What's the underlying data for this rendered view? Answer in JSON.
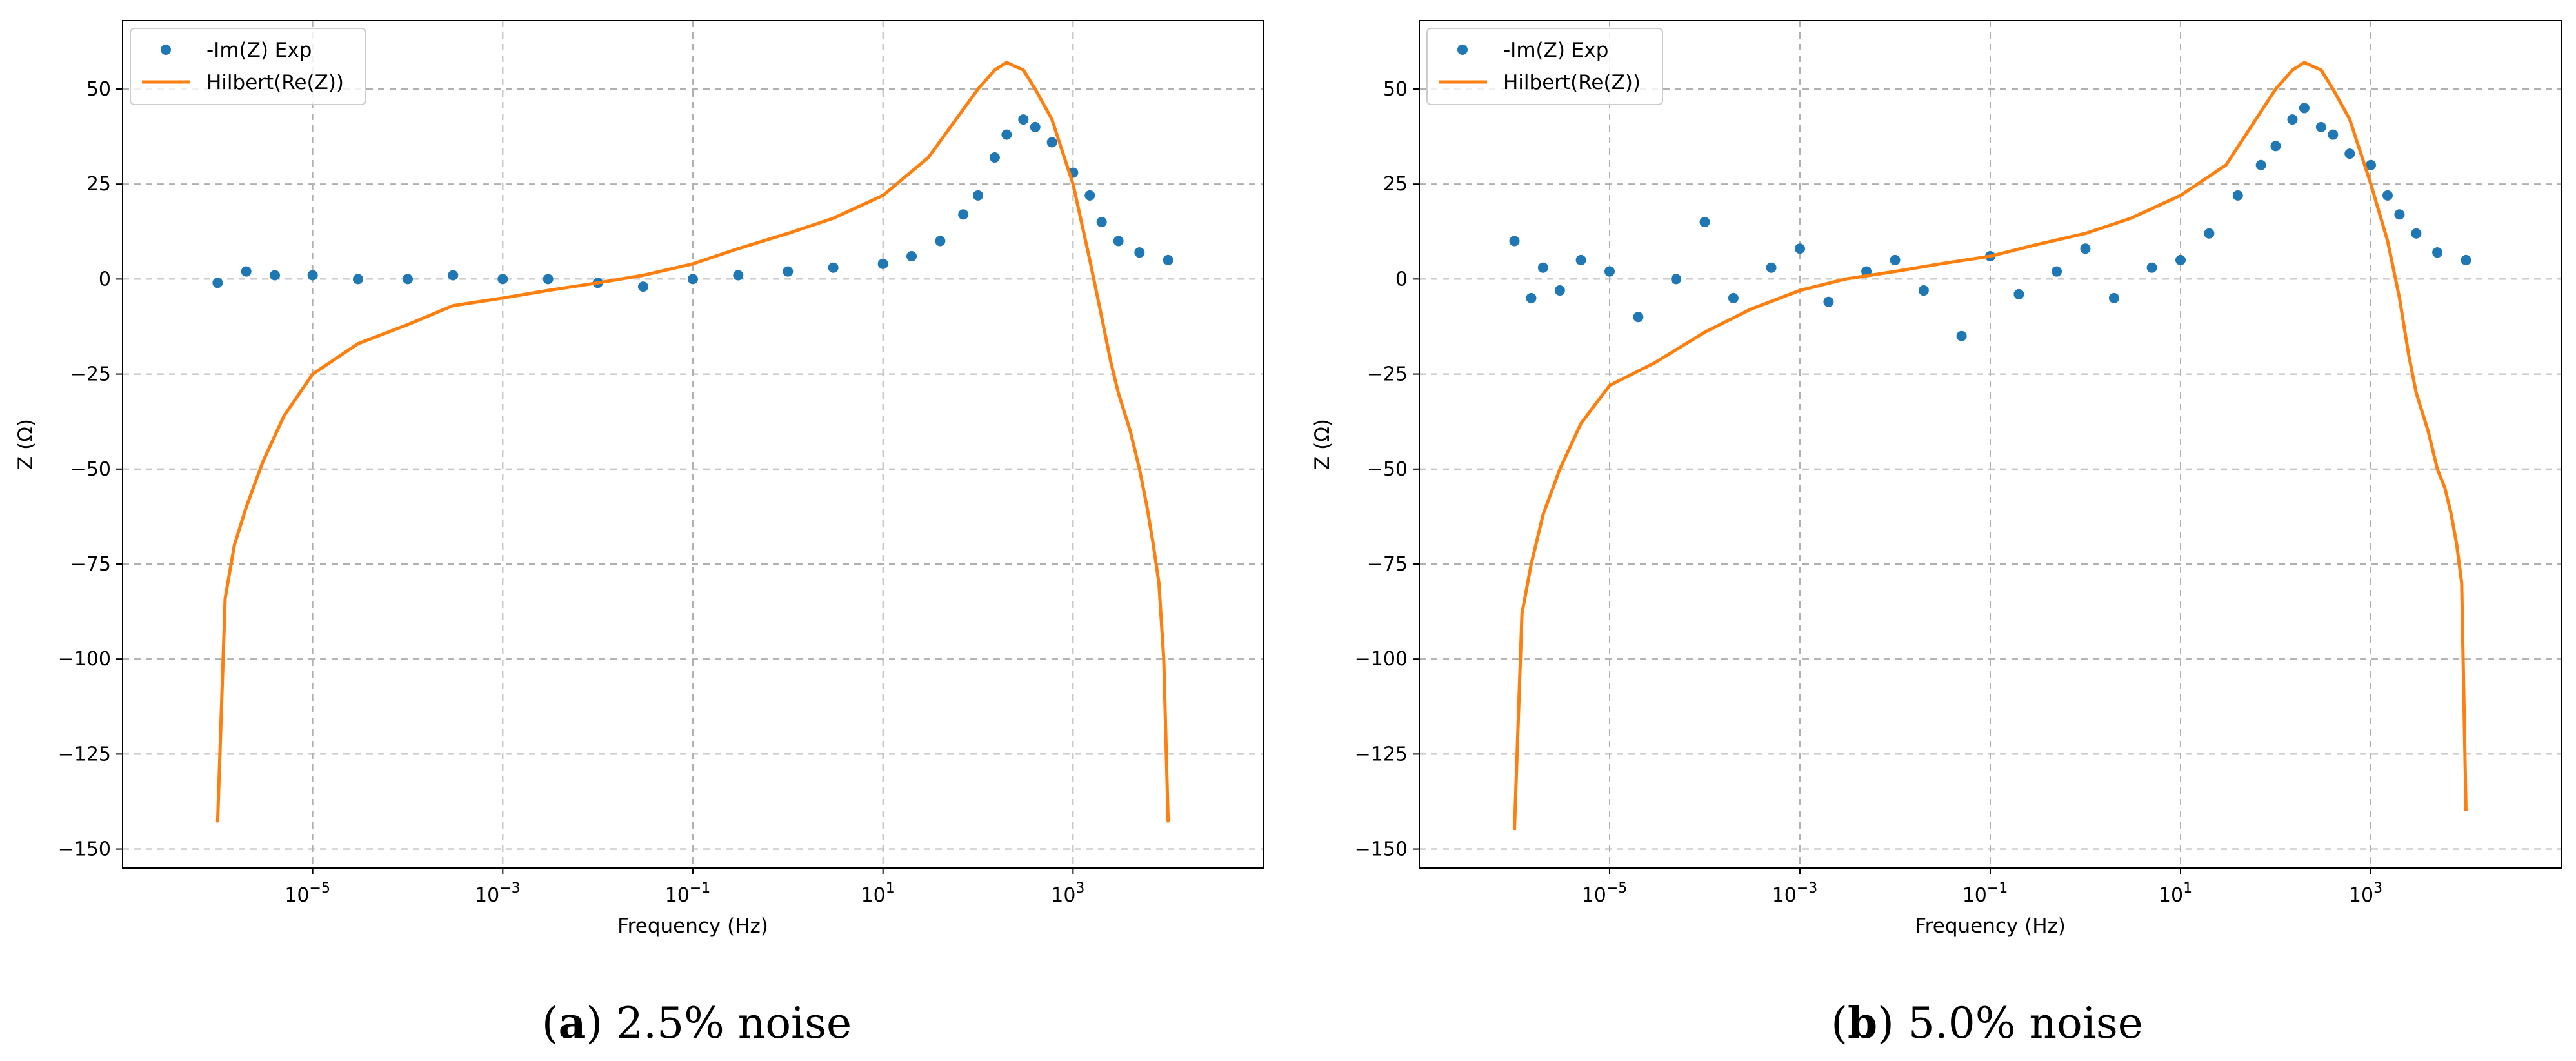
{
  "colors": {
    "scatter": "#1f77b4",
    "line": "#ff7f0e",
    "grid": "#b0b0b0"
  },
  "chart_data": [
    {
      "type": "line",
      "panel": "a",
      "caption_letter": "a",
      "caption_text": " 2.5% noise",
      "xlabel": "Frequency (Hz)",
      "ylabel": "Z (Ω)",
      "xscale": "log",
      "xlim": [
        1e-07,
        100000.0
      ],
      "ylim": [
        -155,
        68
      ],
      "yticks": [
        50,
        25,
        0,
        -25,
        -50,
        -75,
        -100,
        -125,
        -150
      ],
      "ytick_labels": [
        "50",
        "25",
        "0",
        "−25",
        "−50",
        "−75",
        "−100",
        "−125",
        "−150"
      ],
      "xticks": [
        {
          "value": 1e-05,
          "base": "10",
          "exp": "−5"
        },
        {
          "value": 0.001,
          "base": "10",
          "exp": "−3"
        },
        {
          "value": 0.1,
          "base": "10",
          "exp": "−1"
        },
        {
          "value": 10.0,
          "base": "10",
          "exp": "1"
        },
        {
          "value": 1000.0,
          "base": "10",
          "exp": "3"
        }
      ],
      "grid": true,
      "legend": "upper-left",
      "series": [
        {
          "name": "-Im(Z) Exp",
          "kind": "scatter",
          "x": [
            1e-06,
            2e-06,
            4e-06,
            1e-05,
            3e-05,
            0.0001,
            0.0003,
            0.001,
            0.003,
            0.01,
            0.03,
            0.1,
            0.3,
            1,
            3,
            10,
            20,
            40,
            70,
            100,
            150,
            200,
            300,
            400,
            600,
            1000,
            1500,
            2000,
            3000,
            5000,
            10000
          ],
          "y": [
            -1,
            2,
            1,
            1,
            0,
            0,
            1,
            0,
            0,
            -1,
            -2,
            0,
            1,
            2,
            3,
            4,
            6,
            10,
            17,
            22,
            32,
            38,
            42,
            40,
            36,
            28,
            22,
            15,
            10,
            7,
            5
          ]
        },
        {
          "name": "Hilbert(Re(Z))",
          "kind": "line",
          "x": [
            1e-06,
            1.2e-06,
            1.5e-06,
            2e-06,
            3e-06,
            5e-06,
            1e-05,
            3e-05,
            0.0001,
            0.0003,
            0.001,
            0.003,
            0.01,
            0.03,
            0.1,
            0.3,
            1,
            3,
            10,
            30,
            100,
            150,
            200,
            300,
            400,
            600,
            1000,
            1500,
            2000,
            2500,
            3000,
            4000,
            5000,
            6000,
            7000,
            8000,
            9000,
            10000
          ],
          "y": [
            -143,
            -84,
            -70,
            -60,
            -48,
            -36,
            -25,
            -17,
            -12,
            -7,
            -5,
            -3,
            -1,
            1,
            4,
            8,
            12,
            16,
            22,
            32,
            50,
            55,
            57,
            55,
            50,
            42,
            25,
            5,
            -10,
            -22,
            -30,
            -40,
            -50,
            -60,
            -70,
            -80,
            -100,
            -143
          ]
        }
      ]
    },
    {
      "type": "line",
      "panel": "b",
      "caption_letter": "b",
      "caption_text": " 5.0% noise",
      "xlabel": "Frequency (Hz)",
      "ylabel": "Z (Ω)",
      "xscale": "log",
      "xlim": [
        1e-07,
        100000.0
      ],
      "ylim": [
        -155,
        68
      ],
      "yticks": [
        50,
        25,
        0,
        -25,
        -50,
        -75,
        -100,
        -125,
        -150
      ],
      "ytick_labels": [
        "50",
        "25",
        "0",
        "−25",
        "−50",
        "−75",
        "−100",
        "−125",
        "−150"
      ],
      "xticks": [
        {
          "value": 1e-05,
          "base": "10",
          "exp": "−5"
        },
        {
          "value": 0.001,
          "base": "10",
          "exp": "−3"
        },
        {
          "value": 0.1,
          "base": "10",
          "exp": "−1"
        },
        {
          "value": 10.0,
          "base": "10",
          "exp": "1"
        },
        {
          "value": 1000.0,
          "base": "10",
          "exp": "3"
        }
      ],
      "grid": true,
      "legend": "upper-left",
      "series": [
        {
          "name": "-Im(Z) Exp",
          "kind": "scatter",
          "x": [
            1e-06,
            1.5e-06,
            2e-06,
            3e-06,
            5e-06,
            1e-05,
            2e-05,
            5e-05,
            0.0001,
            0.0002,
            0.0005,
            0.001,
            0.002,
            0.005,
            0.01,
            0.02,
            0.05,
            0.1,
            0.2,
            0.5,
            1,
            2,
            5,
            10,
            20,
            40,
            70,
            100,
            150,
            200,
            300,
            400,
            600,
            1000,
            1500,
            2000,
            3000,
            5000,
            10000
          ],
          "y": [
            10,
            -5,
            3,
            -3,
            5,
            2,
            -10,
            0,
            15,
            -5,
            3,
            8,
            -6,
            2,
            5,
            -3,
            -15,
            6,
            -4,
            2,
            8,
            -5,
            3,
            5,
            12,
            22,
            30,
            35,
            42,
            45,
            40,
            38,
            33,
            30,
            22,
            17,
            12,
            7,
            5
          ]
        },
        {
          "name": "Hilbert(Re(Z))",
          "kind": "line",
          "x": [
            1e-06,
            1.2e-06,
            1.5e-06,
            2e-06,
            3e-06,
            5e-06,
            1e-05,
            3e-05,
            0.0001,
            0.0003,
            0.001,
            0.003,
            0.01,
            0.03,
            0.1,
            0.3,
            1,
            3,
            10,
            30,
            100,
            150,
            200,
            300,
            400,
            600,
            1000,
            1500,
            2000,
            2500,
            3000,
            4000,
            5000,
            6000,
            7000,
            8000,
            9000,
            10000
          ],
          "y": [
            -145,
            -88,
            -75,
            -62,
            -50,
            -38,
            -28,
            -22,
            -14,
            -8,
            -3,
            0,
            2,
            4,
            6,
            9,
            12,
            16,
            22,
            30,
            50,
            55,
            57,
            55,
            50,
            42,
            25,
            10,
            -5,
            -20,
            -30,
            -40,
            -50,
            -55,
            -62,
            -70,
            -80,
            -140
          ]
        }
      ]
    }
  ]
}
